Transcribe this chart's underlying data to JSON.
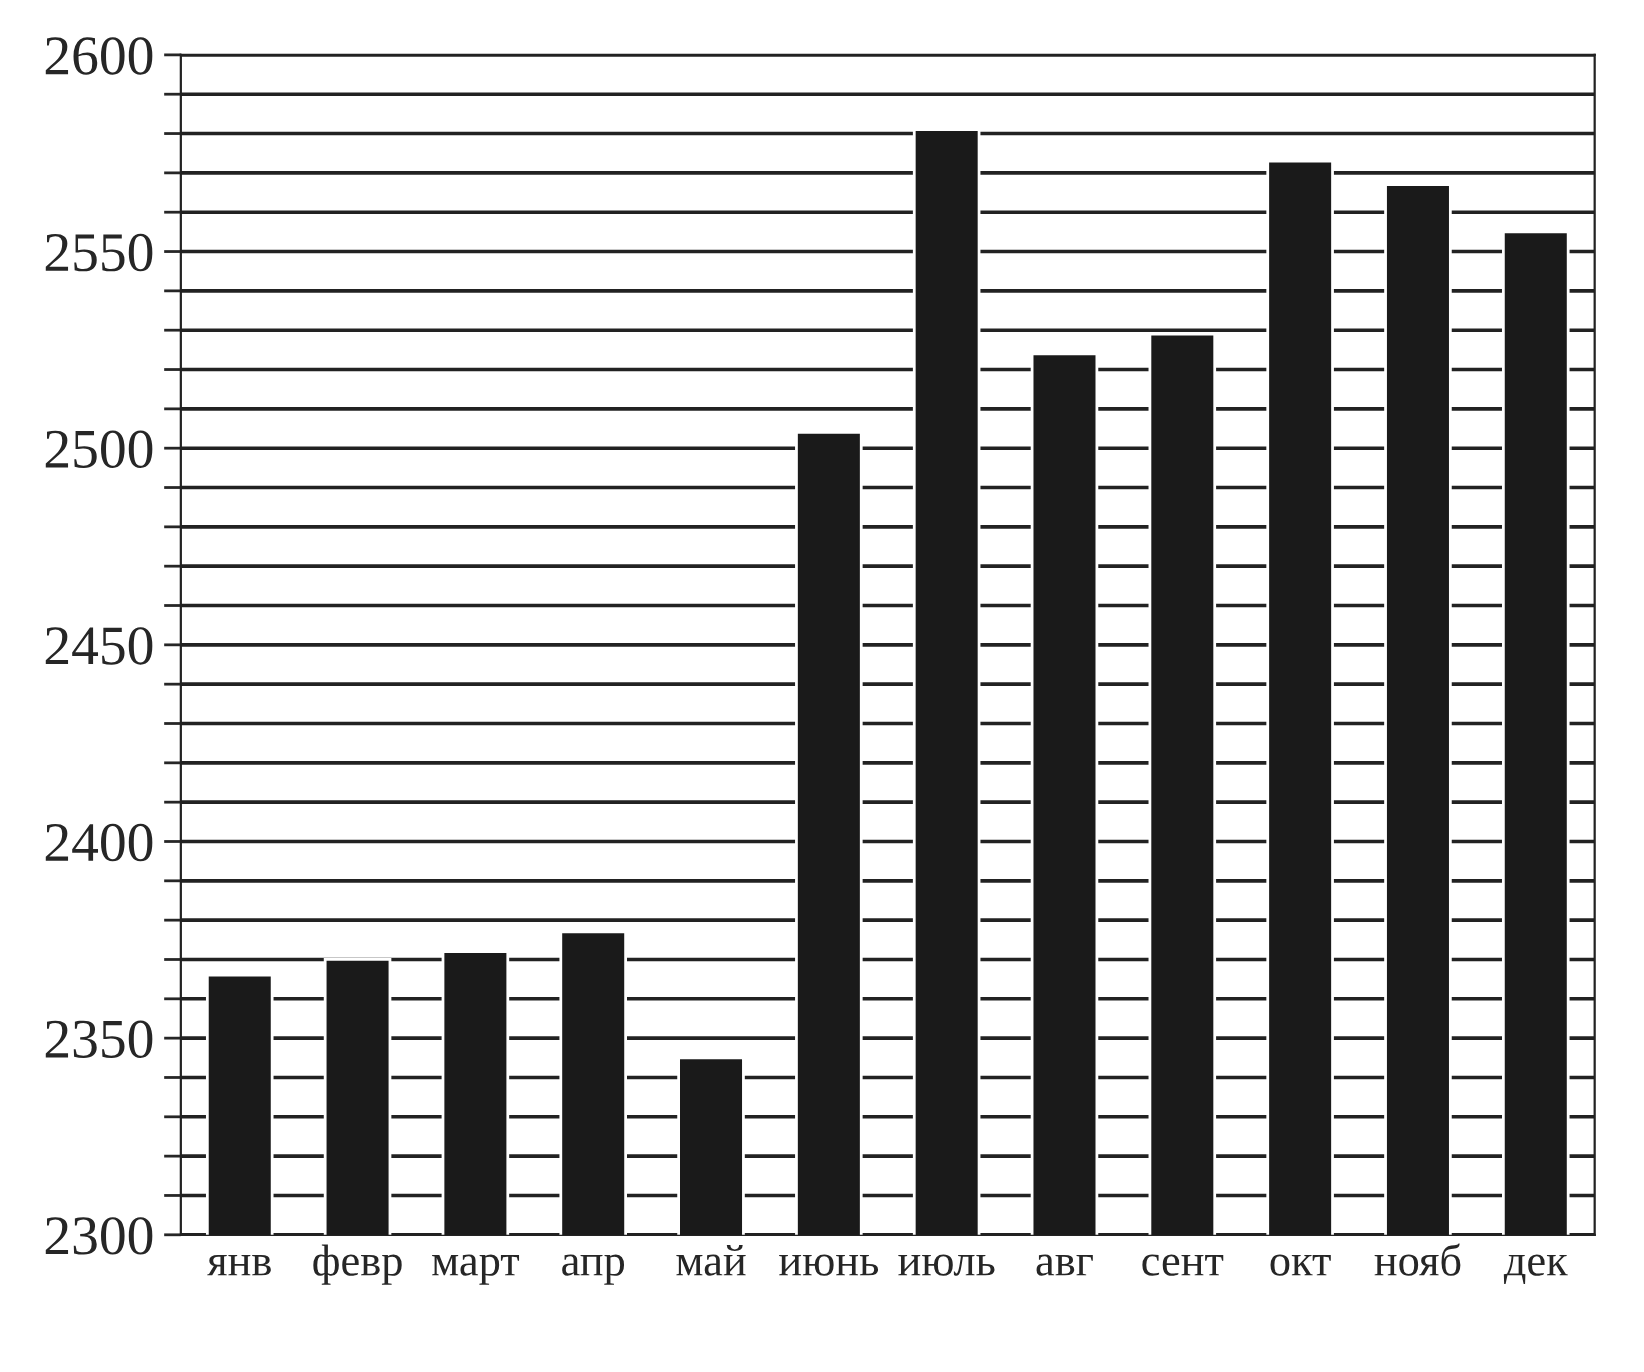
{
  "chart_data": {
    "type": "bar",
    "categories": [
      "янв",
      "февр",
      "март",
      "апр",
      "май",
      "июнь",
      "июль",
      "авг",
      "сент",
      "окт",
      "нояб",
      "дек"
    ],
    "series": [
      {
        "color": "#1a1a1a",
        "values": [
          2366,
          2370,
          2372,
          2377,
          2345,
          2504,
          2581,
          2524,
          2529,
          2573,
          2567,
          2555
        ]
      }
    ],
    "ylim": [
      2300,
      2600
    ],
    "yticks": [
      2300,
      {
        "value": 2310,
        "label": null
      },
      {
        "value": 2320,
        "label": null
      },
      {
        "value": 2330,
        "label": null
      },
      {
        "value": 2340,
        "label": null
      },
      2350,
      {
        "value": 2360,
        "label": null
      },
      {
        "value": 2370,
        "label": null
      },
      {
        "value": 2380,
        "label": null
      },
      {
        "value": 2390,
        "label": null
      },
      2400,
      {
        "value": 2410,
        "label": null
      },
      {
        "value": 2420,
        "label": null
      },
      {
        "value": 2430,
        "label": null
      },
      {
        "value": 2440,
        "label": null
      },
      2450,
      {
        "value": 2460,
        "label": null
      },
      {
        "value": 2470,
        "label": null
      },
      {
        "value": 2480,
        "label": null
      },
      {
        "value": 2490,
        "label": null
      },
      2500,
      {
        "value": 2510,
        "label": null
      },
      {
        "value": 2520,
        "label": null
      },
      {
        "value": 2530,
        "label": null
      },
      {
        "value": 2540,
        "label": null
      },
      2550,
      {
        "value": 2560,
        "label": null
      },
      {
        "value": 2570,
        "label": null
      },
      {
        "value": 2580,
        "label": null
      },
      {
        "value": 2590,
        "label": null
      },
      2600
    ],
    "grid": "y",
    "legend": false
  }
}
